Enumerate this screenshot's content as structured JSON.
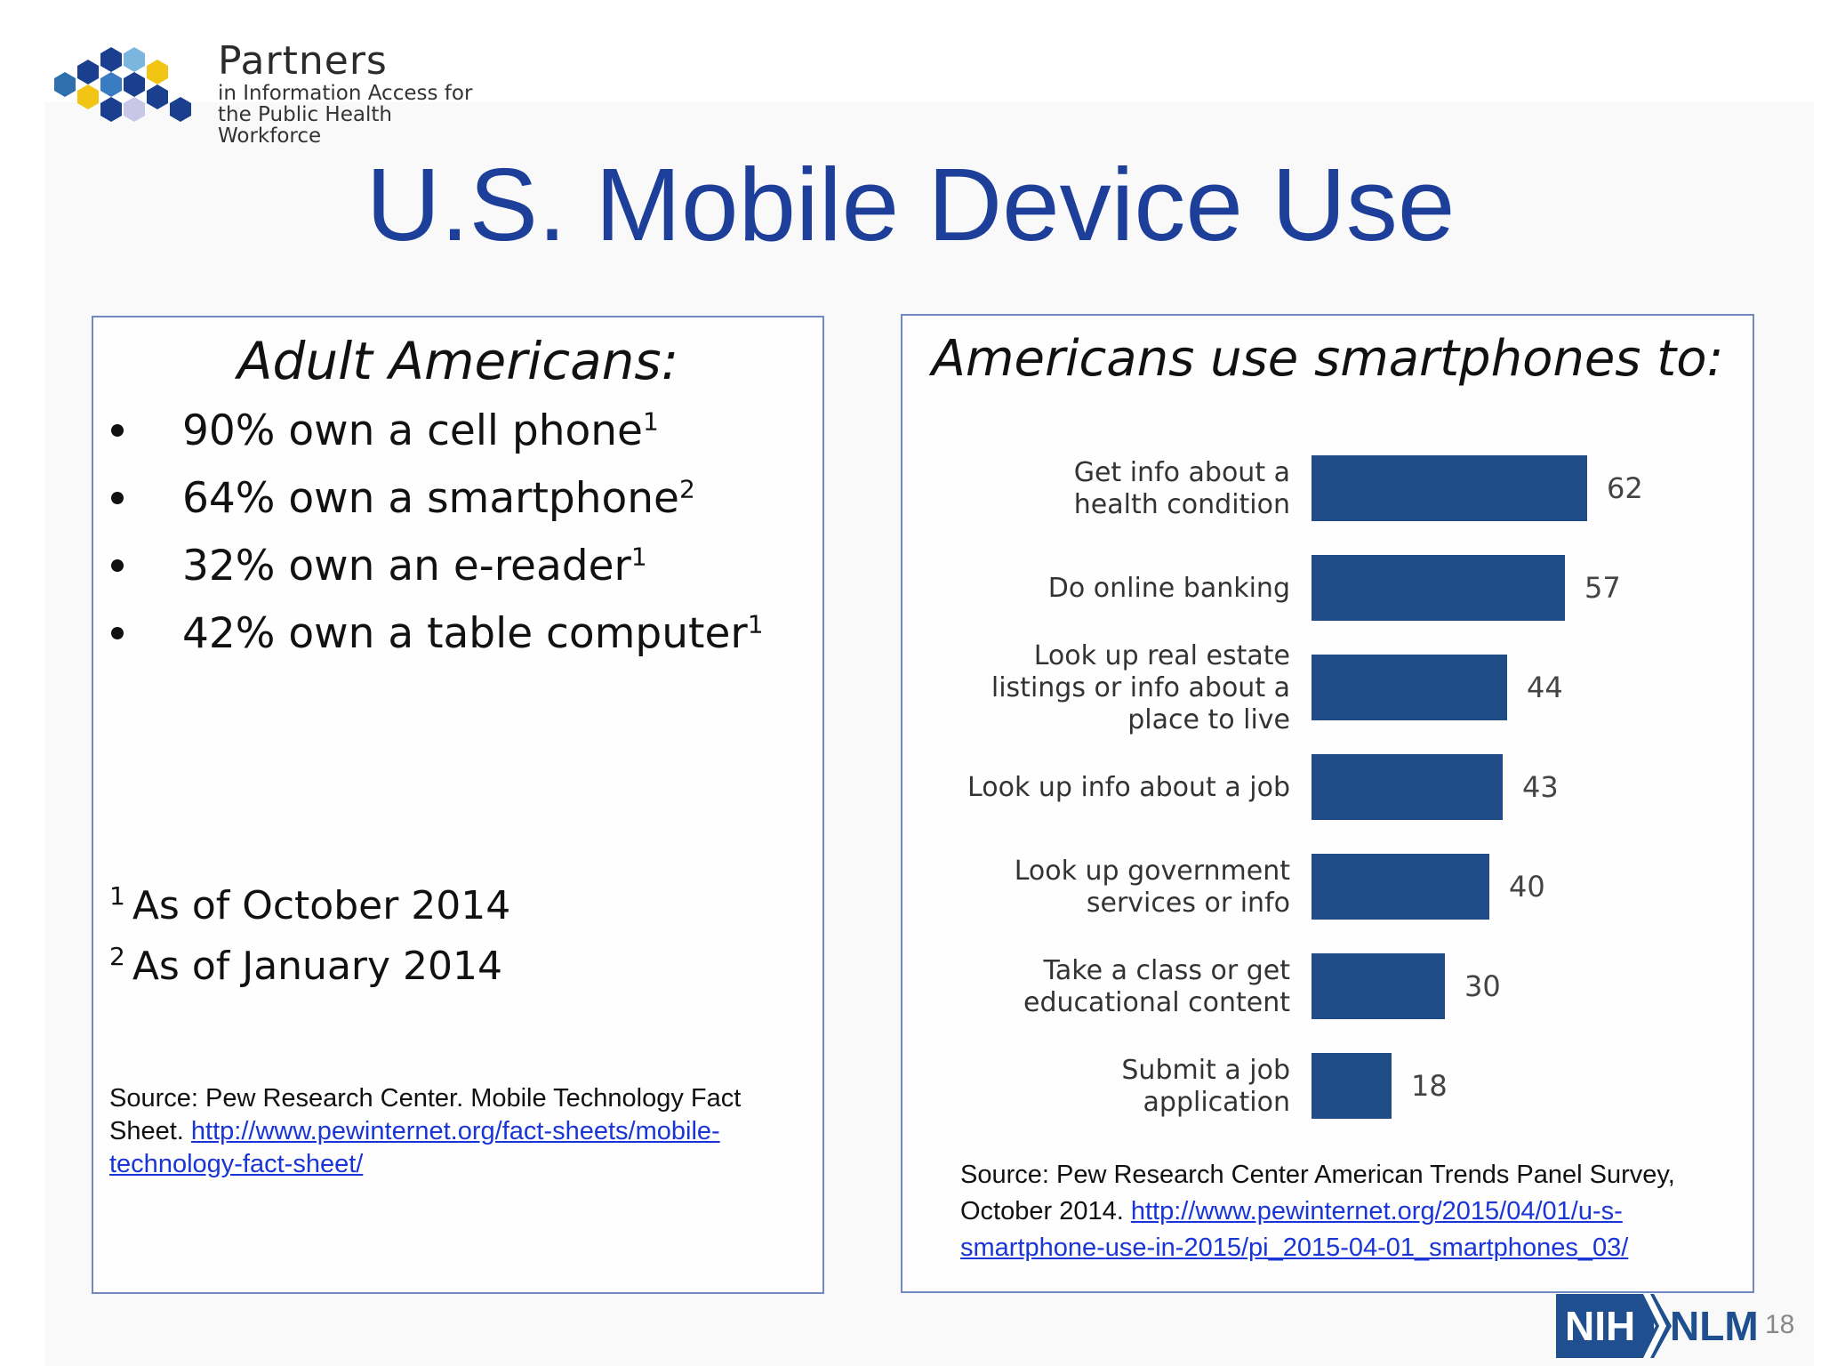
{
  "logo": {
    "title": "Partners",
    "line1": "in Information Access for",
    "line2": "the Public Health Workforce"
  },
  "title": "U.S. Mobile Device Use",
  "left_panel": {
    "heading": "Adult Americans:",
    "bullets": [
      {
        "text": "90% own a cell phone",
        "sup": "1"
      },
      {
        "text": "64% own a smartphone",
        "sup": "2"
      },
      {
        "text": "32% own an e-reader",
        "sup": "1"
      },
      {
        "text": "42% own a table computer",
        "sup": "1"
      }
    ],
    "footnotes": [
      {
        "num": "1",
        "text": "As of October 2014"
      },
      {
        "num": "2",
        "text": "As of January 2014"
      }
    ],
    "source_text": "Source: Pew Research Center. Mobile Technology Fact Sheet.",
    "source_link": "http://www.pewinternet.org/fact-sheets/mobile-technology-fact-sheet/"
  },
  "right_panel": {
    "heading": "Americans use smartphones to:",
    "source_text": "Source: Pew Research Center American Trends Panel Survey, October 2014.",
    "source_link": "http://www.pewinternet.org/2015/04/01/u-s-smartphone-use-in-2015/pi_2015-04-01_smartphones_03/"
  },
  "chart_data": {
    "type": "bar",
    "orientation": "horizontal",
    "categories": [
      [
        "Get info about a",
        "health condition"
      ],
      [
        "Do online banking"
      ],
      [
        "Look up real estate",
        "listings or info about a",
        "place to live"
      ],
      [
        "Look up info about a job"
      ],
      [
        "Look up government",
        "services or info"
      ],
      [
        "Take a class or get",
        "educational content"
      ],
      [
        "Submit a job",
        "application"
      ]
    ],
    "values": [
      62,
      57,
      44,
      43,
      40,
      30,
      18
    ],
    "xlim": [
      0,
      100
    ],
    "bar_color": "#1f4b87",
    "grid": false,
    "data_labels": true
  },
  "colors": {
    "title": "#1d3f9a",
    "panel_border": "#7089c2",
    "bar": "#1f4b87",
    "link": "#1a35d6",
    "nih": "#1f4f8f"
  },
  "nih_logo": {
    "nih": "NIH",
    "nlm": "NLM"
  },
  "page_number": "18"
}
